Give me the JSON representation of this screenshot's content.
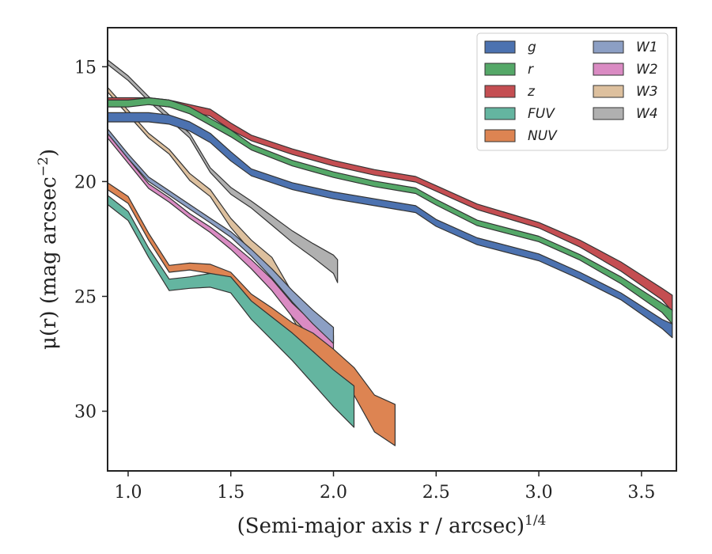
{
  "chart_data": {
    "type": "area",
    "title": "",
    "xlabel": "(Semi-major axis r / arcsec)",
    "xlabel_exponent": "1/4",
    "ylabel": "μ(r) (mag arcsec",
    "ylabel_exponent": "−2",
    "ylabel_tail": ")",
    "xlim": [
      0.9,
      3.67
    ],
    "ylim": [
      32.6,
      13.3
    ],
    "y_inverted": true,
    "xticks": [
      1.0,
      1.5,
      2.0,
      2.5,
      3.0,
      3.5
    ],
    "xtick_labels": [
      "1.0",
      "1.5",
      "2.0",
      "2.5",
      "3.0",
      "3.5"
    ],
    "yticks": [
      15,
      20,
      25,
      30
    ],
    "ytick_labels": [
      "15",
      "20",
      "25",
      "30"
    ],
    "grid": false,
    "legend": {
      "placement": "top-right",
      "columns": 2
    },
    "series": [
      {
        "name": "g",
        "color": "#4c72b0",
        "x": [
          0.9,
          1.0,
          1.1,
          1.2,
          1.3,
          1.4,
          1.5,
          1.6,
          1.8,
          2.0,
          2.2,
          2.4,
          2.5,
          2.7,
          3.0,
          3.2,
          3.4,
          3.6,
          3.65
        ],
        "mu": [
          17.2,
          17.2,
          17.2,
          17.3,
          17.6,
          18.1,
          18.9,
          19.6,
          20.2,
          20.6,
          20.9,
          21.2,
          21.8,
          22.6,
          23.3,
          24.1,
          25.0,
          26.2,
          26.5
        ],
        "err": [
          0.2,
          0.2,
          0.2,
          0.2,
          0.2,
          0.2,
          0.2,
          0.15,
          0.15,
          0.15,
          0.15,
          0.15,
          0.15,
          0.15,
          0.15,
          0.15,
          0.15,
          0.2,
          0.3
        ]
      },
      {
        "name": "r",
        "color": "#55a868",
        "x": [
          0.9,
          1.0,
          1.1,
          1.2,
          1.3,
          1.4,
          1.5,
          1.6,
          1.8,
          2.0,
          2.2,
          2.4,
          2.5,
          2.7,
          3.0,
          3.2,
          3.4,
          3.6,
          3.65
        ],
        "mu": [
          16.6,
          16.6,
          16.5,
          16.6,
          16.9,
          17.4,
          17.9,
          18.5,
          19.2,
          19.7,
          20.1,
          20.4,
          20.9,
          21.8,
          22.5,
          23.3,
          24.3,
          25.5,
          25.9
        ],
        "err": [
          0.15,
          0.15,
          0.15,
          0.15,
          0.15,
          0.15,
          0.15,
          0.12,
          0.12,
          0.12,
          0.12,
          0.12,
          0.12,
          0.12,
          0.12,
          0.12,
          0.15,
          0.2,
          0.3
        ]
      },
      {
        "name": "z",
        "color": "#c44e52",
        "x": [
          0.9,
          1.0,
          1.1,
          1.2,
          1.3,
          1.4,
          1.5,
          1.6,
          1.8,
          2.0,
          2.2,
          2.4,
          2.5,
          2.7,
          3.0,
          3.2,
          3.4,
          3.6,
          3.65
        ],
        "mu": [
          16.5,
          16.5,
          16.5,
          16.6,
          16.8,
          17.0,
          17.6,
          18.1,
          18.7,
          19.2,
          19.6,
          19.9,
          20.3,
          21.1,
          21.9,
          22.7,
          23.7,
          24.9,
          25.3
        ],
        "err": [
          0.15,
          0.15,
          0.15,
          0.15,
          0.15,
          0.15,
          0.15,
          0.12,
          0.12,
          0.12,
          0.12,
          0.12,
          0.12,
          0.12,
          0.12,
          0.15,
          0.2,
          0.25,
          0.35
        ]
      },
      {
        "name": "FUV",
        "color": "#64b5a0",
        "x": [
          0.9,
          1.0,
          1.1,
          1.2,
          1.3,
          1.4,
          1.5,
          1.6,
          1.7,
          1.8,
          1.9,
          2.0,
          2.1
        ],
        "mu": [
          20.8,
          21.5,
          23.1,
          24.5,
          24.4,
          24.3,
          24.5,
          25.6,
          26.4,
          27.2,
          28.1,
          29.0,
          29.8
        ],
        "err": [
          0.2,
          0.2,
          0.2,
          0.25,
          0.25,
          0.3,
          0.35,
          0.4,
          0.5,
          0.6,
          0.7,
          0.8,
          0.9
        ]
      },
      {
        "name": "NUV",
        "color": "#dd8452",
        "x": [
          0.9,
          1.0,
          1.1,
          1.2,
          1.3,
          1.4,
          1.5,
          1.6,
          1.7,
          1.8,
          1.9,
          2.0,
          2.1,
          2.2,
          2.3
        ],
        "mu": [
          20.2,
          20.8,
          22.4,
          23.8,
          23.7,
          23.8,
          24.2,
          25.2,
          25.8,
          26.5,
          27.0,
          27.8,
          28.7,
          30.1,
          30.6
        ],
        "err": [
          0.15,
          0.15,
          0.15,
          0.15,
          0.15,
          0.2,
          0.25,
          0.3,
          0.3,
          0.35,
          0.4,
          0.5,
          0.6,
          0.8,
          0.9
        ]
      },
      {
        "name": "W1",
        "color": "#8c9fc4",
        "x": [
          0.9,
          1.0,
          1.1,
          1.2,
          1.3,
          1.4,
          1.5,
          1.6,
          1.7,
          1.8,
          1.9,
          2.0
        ],
        "mu": [
          17.8,
          18.9,
          19.9,
          20.5,
          21.1,
          21.7,
          22.3,
          23.1,
          24.0,
          25.0,
          25.9,
          26.7
        ],
        "err": [
          0.1,
          0.1,
          0.1,
          0.1,
          0.1,
          0.1,
          0.12,
          0.15,
          0.2,
          0.25,
          0.3,
          0.35
        ]
      },
      {
        "name": "W2",
        "color": "#da8bc3",
        "x": [
          0.9,
          1.0,
          1.1,
          1.2,
          1.3,
          1.4,
          1.5,
          1.6,
          1.7,
          1.8,
          1.9,
          2.0
        ],
        "mu": [
          18.0,
          19.1,
          20.2,
          20.8,
          21.5,
          22.1,
          22.8,
          23.6,
          24.5,
          25.6,
          26.5,
          27.1
        ],
        "err": [
          0.1,
          0.1,
          0.1,
          0.1,
          0.1,
          0.12,
          0.15,
          0.2,
          0.25,
          0.3,
          0.35,
          0.4
        ]
      },
      {
        "name": "W3",
        "color": "#ddc09e",
        "x": [
          0.9,
          1.0,
          1.1,
          1.2,
          1.3,
          1.4,
          1.5,
          1.6,
          1.7,
          1.8,
          1.85
        ],
        "mu": [
          16.0,
          17.0,
          18.0,
          18.7,
          19.8,
          20.5,
          21.8,
          22.8,
          23.6,
          25.4,
          26.1
        ],
        "err": [
          0.1,
          0.1,
          0.1,
          0.1,
          0.15,
          0.15,
          0.2,
          0.25,
          0.3,
          0.55,
          0.6
        ]
      },
      {
        "name": "W4",
        "color": "#b0b0b0",
        "x": [
          0.9,
          1.0,
          1.1,
          1.2,
          1.3,
          1.4,
          1.5,
          1.6,
          1.7,
          1.8,
          1.9,
          2.0,
          2.02
        ],
        "mu": [
          14.8,
          15.5,
          16.4,
          17.2,
          18.0,
          19.5,
          20.4,
          21.0,
          21.7,
          22.4,
          23.0,
          23.6,
          23.9
        ],
        "err": [
          0.1,
          0.1,
          0.1,
          0.1,
          0.1,
          0.1,
          0.15,
          0.15,
          0.2,
          0.25,
          0.3,
          0.4,
          0.5
        ]
      }
    ]
  }
}
